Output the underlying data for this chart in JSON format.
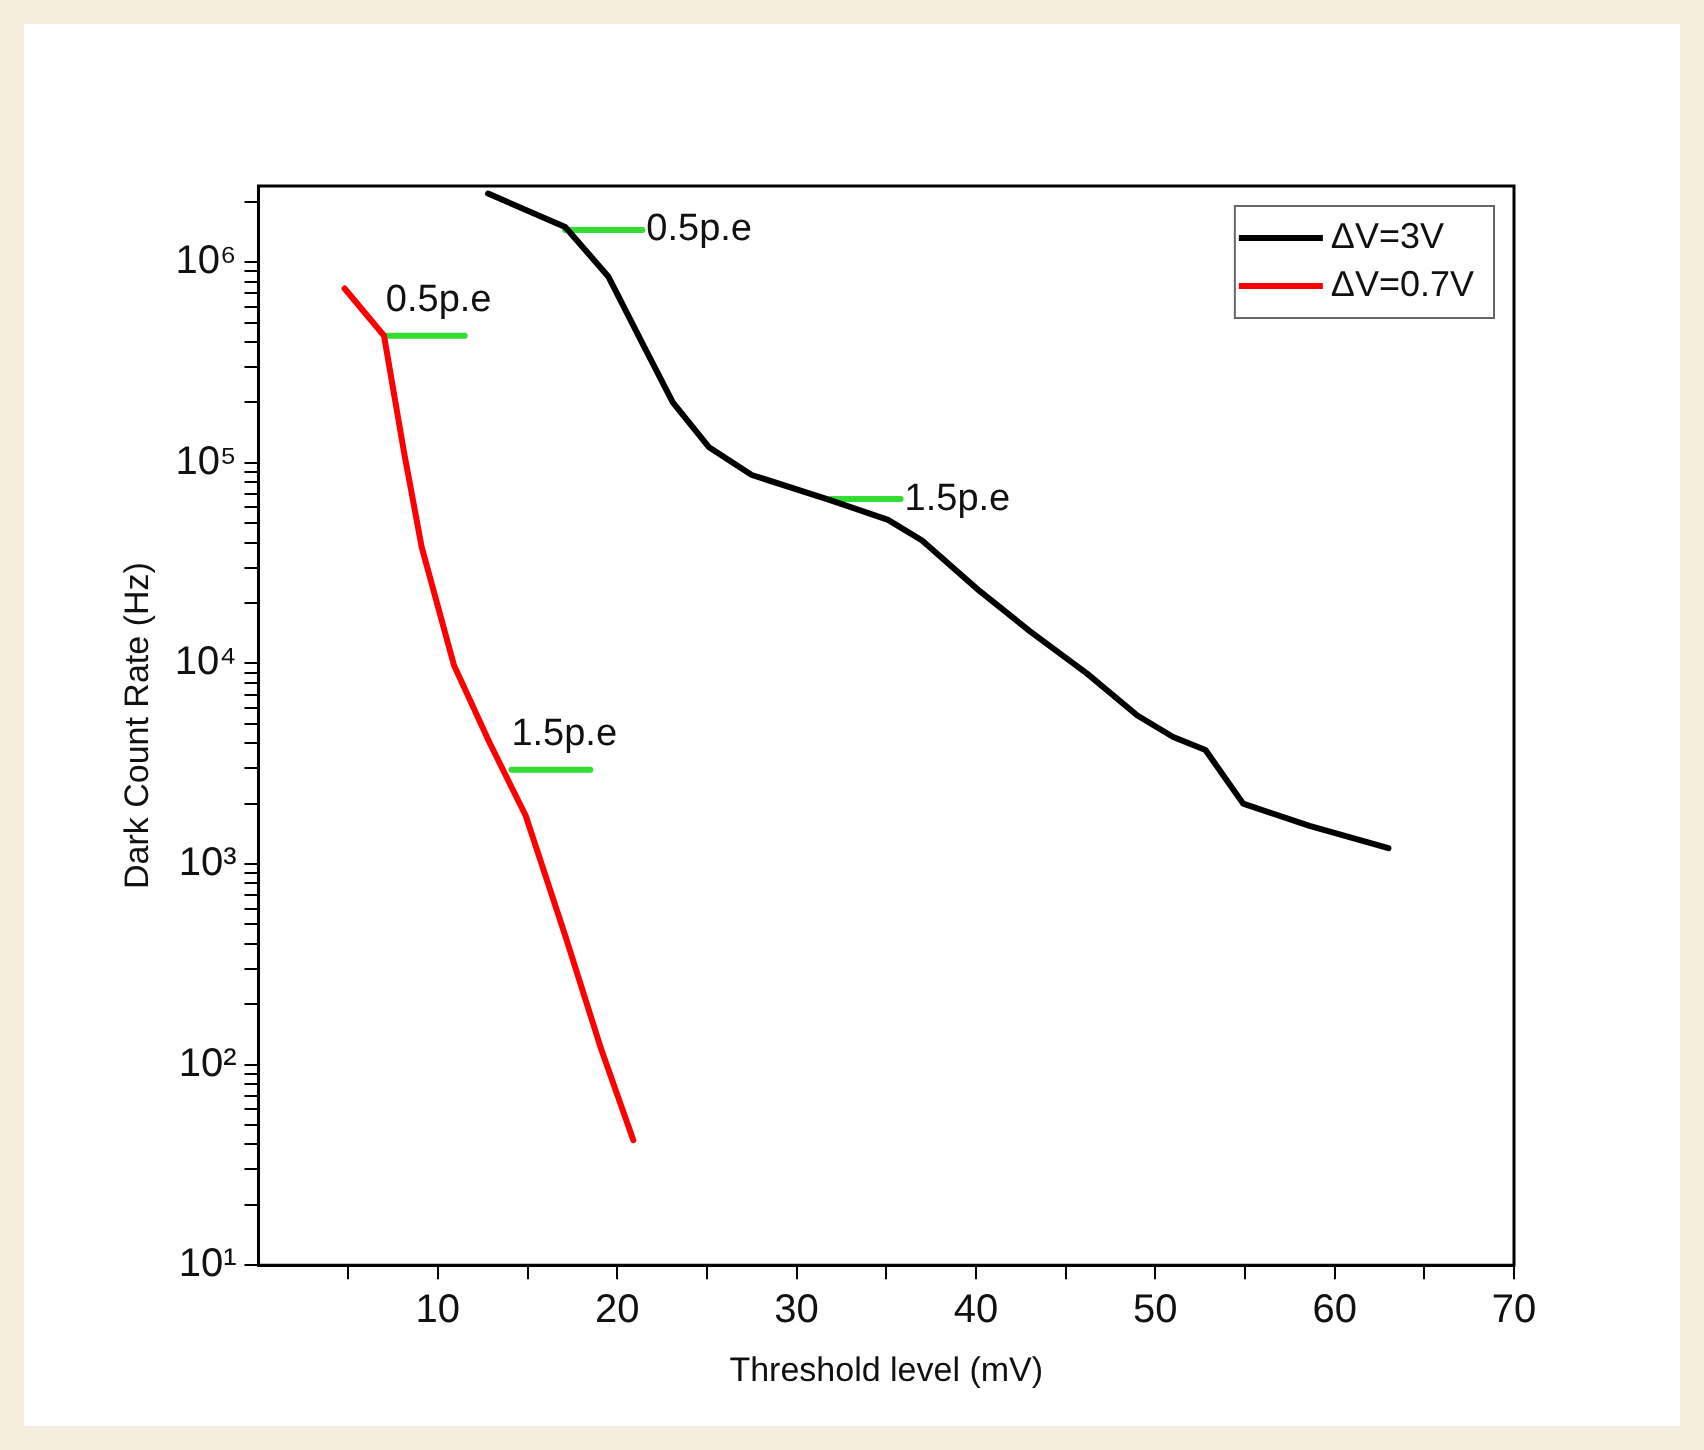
{
  "chart_data": {
    "type": "line",
    "xlabel": "Threshold level (mV)",
    "ylabel": "Dark Count Rate (Hz)",
    "xlim": [
      0,
      70
    ],
    "xticks": [
      {
        "value": 5,
        "label": null
      },
      10,
      {
        "value": 15,
        "label": null
      },
      20,
      {
        "value": 25,
        "label": null
      },
      30,
      {
        "value": 35,
        "label": null
      },
      40,
      {
        "value": 45,
        "label": null
      },
      50,
      {
        "value": 55,
        "label": null
      },
      60,
      {
        "value": 65,
        "label": null
      },
      70
    ],
    "ylim": [
      10,
      2400000
    ],
    "log": true,
    "yticks": [
      {
        "value": 10,
        "label": "10¹"
      },
      {
        "value": 20,
        "label": null
      },
      {
        "value": 30,
        "label": null
      },
      {
        "value": 40,
        "label": null
      },
      {
        "value": 50,
        "label": null
      },
      {
        "value": 60,
        "label": null
      },
      {
        "value": 70,
        "label": null
      },
      {
        "value": 80,
        "label": null
      },
      {
        "value": 90,
        "label": null
      },
      {
        "value": 100,
        "label": "10²"
      },
      {
        "value": 200,
        "label": null
      },
      {
        "value": 300,
        "label": null
      },
      {
        "value": 400,
        "label": null
      },
      {
        "value": 500,
        "label": null
      },
      {
        "value": 600,
        "label": null
      },
      {
        "value": 700,
        "label": null
      },
      {
        "value": 800,
        "label": null
      },
      {
        "value": 900,
        "label": null
      },
      {
        "value": 1000,
        "label": "10³"
      },
      {
        "value": 2000,
        "label": null
      },
      {
        "value": 3000,
        "label": null
      },
      {
        "value": 4000,
        "label": null
      },
      {
        "value": 5000,
        "label": null
      },
      {
        "value": 6000,
        "label": null
      },
      {
        "value": 7000,
        "label": null
      },
      {
        "value": 8000,
        "label": null
      },
      {
        "value": 9000,
        "label": null
      },
      {
        "value": 10000,
        "label": "10⁴"
      },
      {
        "value": 20000,
        "label": null
      },
      {
        "value": 30000,
        "label": null
      },
      {
        "value": 40000,
        "label": null
      },
      {
        "value": 50000,
        "label": null
      },
      {
        "value": 60000,
        "label": null
      },
      {
        "value": 70000,
        "label": null
      },
      {
        "value": 80000,
        "label": null
      },
      {
        "value": 90000,
        "label": null
      },
      {
        "value": 100000,
        "label": "10⁵"
      },
      {
        "value": 200000,
        "label": null
      },
      {
        "value": 300000,
        "label": null
      },
      {
        "value": 400000,
        "label": null
      },
      {
        "value": 500000,
        "label": null
      },
      {
        "value": 600000,
        "label": null
      },
      {
        "value": 700000,
        "label": null
      },
      {
        "value": 800000,
        "label": null
      },
      {
        "value": 900000,
        "label": null
      },
      {
        "value": 1000000,
        "label": "10⁶"
      },
      {
        "value": 2000000,
        "label": null
      }
    ],
    "legend": "top right",
    "grid": false,
    "series": [
      {
        "name": "ΔV=3V",
        "color": "#000000",
        "x": [
          12.8,
          17.1,
          19.5,
          21.5,
          23.1,
          25.1,
          27.5,
          31.7,
          35.1,
          37.0,
          40.2,
          43.0,
          46.2,
          49.0,
          51.0,
          52.8,
          54.9,
          58.6,
          63.0
        ],
        "values": [
          2200000,
          1500000,
          850000,
          380000,
          200000,
          120000,
          87000,
          66000,
          52000,
          41000,
          23000,
          14500,
          8900,
          5500,
          4300,
          3700,
          2000,
          1550,
          1200
        ]
      },
      {
        "name": "ΔV=0.7V",
        "color": "#ff0000",
        "x": [
          4.8,
          7.0,
          8.1,
          9.1,
          10.9,
          12.9,
          14.9,
          17.1,
          19.1,
          20.9
        ],
        "values": [
          740000,
          430000,
          115000,
          38000,
          9800,
          4000,
          1740,
          440,
          120,
          42
        ]
      },
      {
        "color": "#33dd33",
        "x": [
          7.1,
          11.5
        ],
        "values": [
          430000,
          430000
        ]
      },
      {
        "color": "#33dd33",
        "x": [
          14.1,
          18.5
        ],
        "values": [
          2950,
          2950
        ]
      },
      {
        "color": "#33dd33",
        "x": [
          17.1,
          21.4
        ],
        "values": [
          1450000,
          1450000
        ]
      },
      {
        "color": "#33dd33",
        "x": [
          31.9,
          35.8
        ],
        "values": [
          66000,
          66000
        ]
      }
    ],
    "annotations": [
      {
        "text": "0.5p.e",
        "x": 7.1,
        "y": 430000
      },
      {
        "text": "1.5p.e",
        "x": 14.1,
        "y": 2950
      },
      {
        "text": "0.5p.e",
        "x": 21.4,
        "y": 1450000
      },
      {
        "text": "1.5p.e",
        "x": 35.8,
        "y": 66000
      }
    ]
  }
}
